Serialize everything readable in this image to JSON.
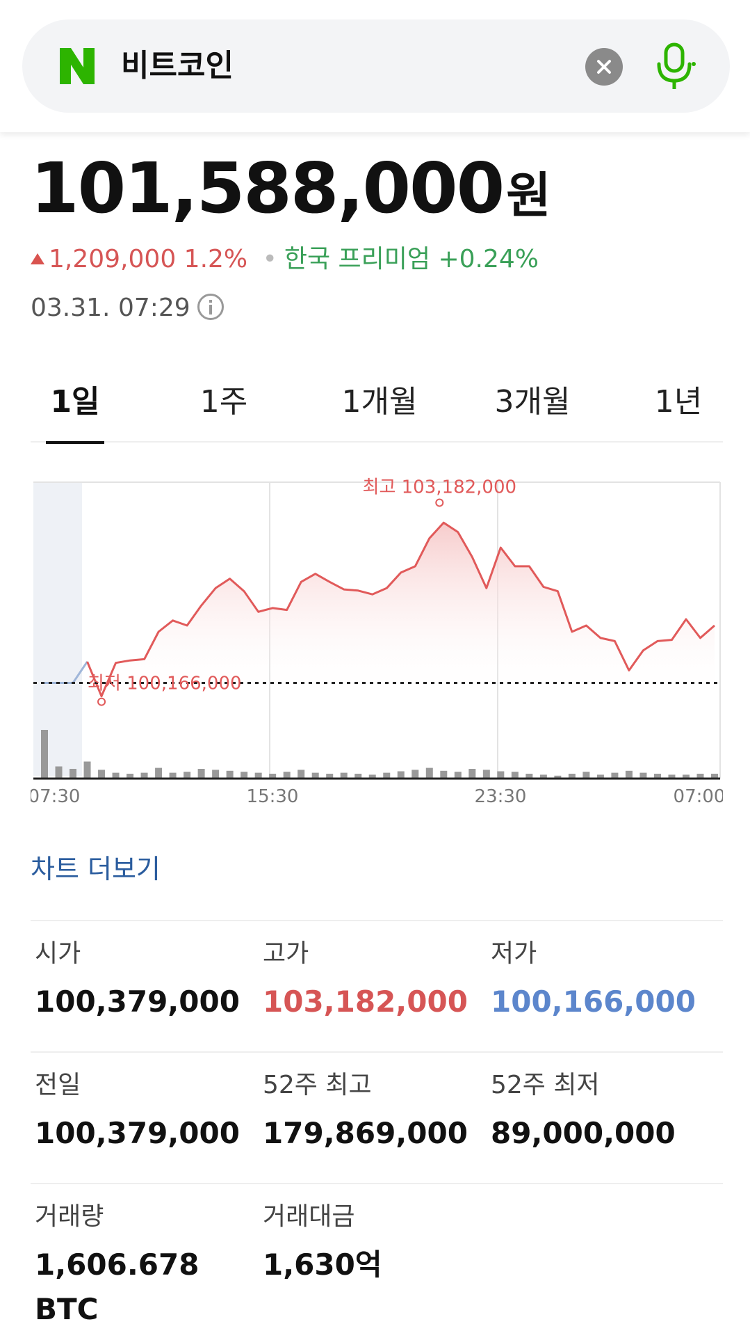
{
  "search": {
    "query": "비트코인",
    "logo_letter": "N"
  },
  "price": {
    "value": "101,588,000",
    "unit": "원"
  },
  "change": {
    "amount": "1,209,000",
    "percent": "1.2%",
    "premium_label": "한국 프리미엄",
    "premium_value": "+0.24%"
  },
  "timestamp": "03.31. 07:29",
  "tabs": [
    {
      "label": "1일",
      "active": true
    },
    {
      "label": "1주",
      "active": false
    },
    {
      "label": "1개월",
      "active": false
    },
    {
      "label": "3개월",
      "active": false
    },
    {
      "label": "1년",
      "active": false
    }
  ],
  "chart_data": {
    "type": "line",
    "x_tick_labels": [
      "07:30",
      "15:30",
      "23:30",
      "07:00"
    ],
    "annotations": {
      "high_label": "최고 103,182,000",
      "low_label": "최저 100,166,000"
    },
    "high": 103182000,
    "low": 100166000,
    "ylim": [
      99000000,
      103600000
    ],
    "reference_line": 100379000,
    "values": [
      100379000,
      100379000,
      100379000,
      100720000,
      100166000,
      100700000,
      100740000,
      100760000,
      101200000,
      101380000,
      101300000,
      101620000,
      101900000,
      102050000,
      101850000,
      101520000,
      101580000,
      101550000,
      102000000,
      102130000,
      102000000,
      101880000,
      101860000,
      101800000,
      101900000,
      102150000,
      102250000,
      102700000,
      102950000,
      102800000,
      102400000,
      101900000,
      102550000,
      102250000,
      102250000,
      101920000,
      101850000,
      101200000,
      101300000,
      101100000,
      101050000,
      100580000,
      100900000,
      101050000,
      101070000,
      101400000,
      101100000,
      101300000
    ],
    "volume": [
      1.0,
      0.25,
      0.2,
      0.35,
      0.18,
      0.12,
      0.1,
      0.12,
      0.22,
      0.12,
      0.14,
      0.2,
      0.18,
      0.16,
      0.14,
      0.12,
      0.1,
      0.14,
      0.18,
      0.12,
      0.1,
      0.12,
      0.1,
      0.08,
      0.12,
      0.15,
      0.18,
      0.22,
      0.16,
      0.14,
      0.2,
      0.18,
      0.15,
      0.14,
      0.1,
      0.08,
      0.06,
      0.1,
      0.14,
      0.08,
      0.12,
      0.16,
      0.12,
      0.1,
      0.08,
      0.08,
      0.1,
      0.1
    ],
    "colors": {
      "line": "#e15a5a",
      "fill": "#f6c6c6",
      "pre_line": "#9fb6d9",
      "volume": "#999999"
    }
  },
  "more_chart": "차트 더보기",
  "stats": [
    [
      {
        "label": "시가",
        "value": "100,379,000",
        "color": ""
      },
      {
        "label": "고가",
        "value": "103,182,000",
        "color": "red"
      },
      {
        "label": "저가",
        "value": "100,166,000",
        "color": "blue"
      }
    ],
    [
      {
        "label": "전일",
        "value": "100,379,000",
        "color": ""
      },
      {
        "label": "52주 최고",
        "value": "179,869,000",
        "color": ""
      },
      {
        "label": "52주 최저",
        "value": "89,000,000",
        "color": ""
      }
    ],
    [
      {
        "label": "거래량",
        "value": "1,606.678",
        "value2": "BTC",
        "color": ""
      },
      {
        "label": "거래대금",
        "value": "1,630억",
        "color": ""
      }
    ]
  ]
}
